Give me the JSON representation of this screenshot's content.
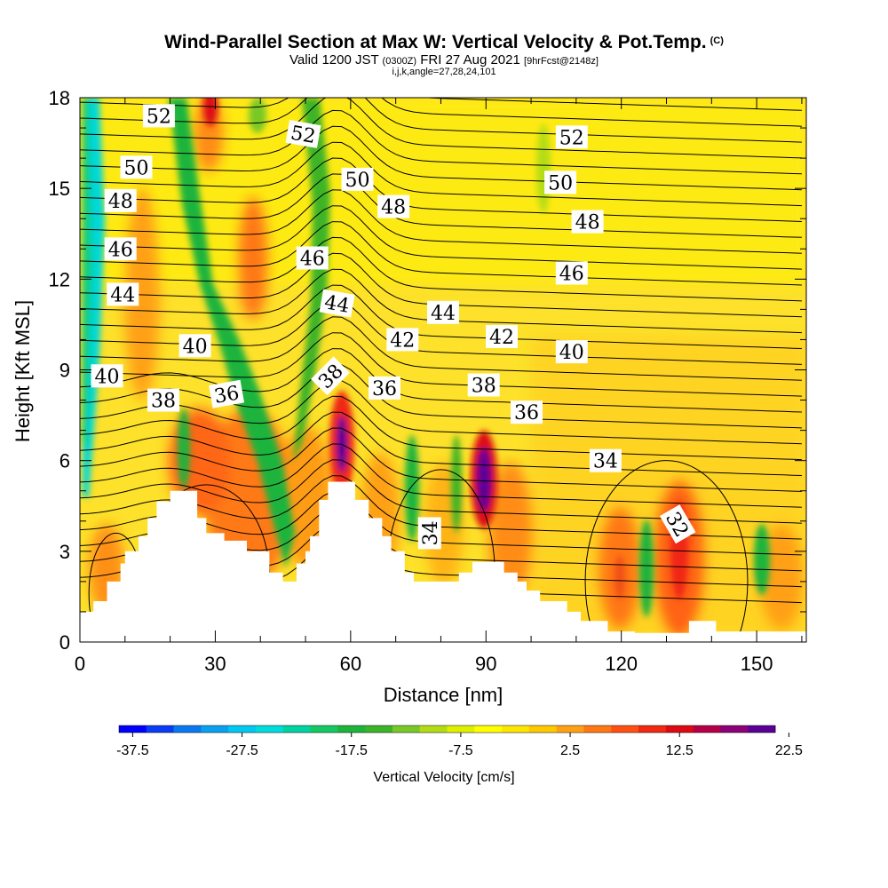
{
  "header": {
    "title": "Wind-Parallel Section at Max W: Vertical Velocity & Pot.Temp.",
    "copyright": "(C)",
    "valid_prefix": "Valid 1200 JST",
    "valid_zulu": "(0300Z)",
    "valid_date": "FRI 27 Aug 2021",
    "forecast_info": "[9hrFcst@2148z]",
    "grid_info": "i,j,k,angle=27,28,24,101"
  },
  "chart_data": {
    "type": "heatmap",
    "xlabel": "Distance [nm]",
    "ylabel": "Height [Kft MSL]",
    "xlim": [
      0,
      161
    ],
    "ylim": [
      0,
      18
    ],
    "x_ticks": [
      "0",
      "30",
      "60",
      "90",
      "120",
      "150"
    ],
    "y_ticks": [
      "0",
      "3",
      "6",
      "9",
      "12",
      "15",
      "18"
    ],
    "colorbar": {
      "label": "Vertical Velocity [cm/s]",
      "tick_labels": [
        "-37.5",
        "-27.5",
        "-17.5",
        "-7.5",
        "2.5",
        "12.5",
        "22.5"
      ],
      "colors": [
        "#0000ff",
        "#0a3cf5",
        "#0a78f0",
        "#0aa0f0",
        "#00c8f0",
        "#00dcdc",
        "#00d2a0",
        "#14c864",
        "#1eb43c",
        "#3cb428",
        "#78c828",
        "#b4dc14",
        "#dcf000",
        "#ffff00",
        "#ffe600",
        "#ffc800",
        "#ffa014",
        "#ff7814",
        "#ff5014",
        "#f02814",
        "#dc0a14",
        "#b40046",
        "#8c0078",
        "#5a0096"
      ]
    },
    "theta_contours": [
      {
        "value": 32,
        "label": "32"
      },
      {
        "value": 34,
        "label": "34"
      },
      {
        "value": 36,
        "label": "36"
      },
      {
        "value": 38,
        "label": "38"
      },
      {
        "value": 40,
        "label": "40"
      },
      {
        "value": 42,
        "label": "42"
      },
      {
        "value": 44,
        "label": "44"
      },
      {
        "value": 46,
        "label": "46"
      },
      {
        "value": 48,
        "label": "48"
      },
      {
        "value": 50,
        "label": "50"
      },
      {
        "value": 52,
        "label": "52"
      }
    ],
    "contour_labels": [
      {
        "text": "52",
        "x": 17.5,
        "y": 17.4,
        "rot": 0
      },
      {
        "text": "52",
        "x": 49.5,
        "y": 16.8,
        "rot": 10
      },
      {
        "text": "52",
        "x": 109,
        "y": 16.7,
        "rot": 0
      },
      {
        "text": "50",
        "x": 12.5,
        "y": 15.7,
        "rot": 0
      },
      {
        "text": "50",
        "x": 61.5,
        "y": 15.3,
        "rot": 0
      },
      {
        "text": "50",
        "x": 106.5,
        "y": 15.2,
        "rot": 0
      },
      {
        "text": "48",
        "x": 9,
        "y": 14.6,
        "rot": 0
      },
      {
        "text": "48",
        "x": 69.5,
        "y": 14.4,
        "rot": 0
      },
      {
        "text": "48",
        "x": 112.5,
        "y": 13.9,
        "rot": 0
      },
      {
        "text": "46",
        "x": 9,
        "y": 13.0,
        "rot": 0
      },
      {
        "text": "46",
        "x": 51.5,
        "y": 12.7,
        "rot": 0
      },
      {
        "text": "46",
        "x": 109,
        "y": 12.2,
        "rot": 0
      },
      {
        "text": "44",
        "x": 9.5,
        "y": 11.5,
        "rot": 0
      },
      {
        "text": "44",
        "x": 57,
        "y": 11.2,
        "rot": 10
      },
      {
        "text": "44",
        "x": 80.5,
        "y": 10.9,
        "rot": 0
      },
      {
        "text": "42",
        "x": 71.5,
        "y": 10.0,
        "rot": 0
      },
      {
        "text": "42",
        "x": 93.5,
        "y": 10.1,
        "rot": 0
      },
      {
        "text": "40",
        "x": 25.5,
        "y": 9.8,
        "rot": 0
      },
      {
        "text": "40",
        "x": 6,
        "y": 8.8,
        "rot": 0
      },
      {
        "text": "40",
        "x": 109,
        "y": 9.6,
        "rot": 0
      },
      {
        "text": "38",
        "x": 18.5,
        "y": 8.0,
        "rot": 0
      },
      {
        "text": "38",
        "x": 55.5,
        "y": 8.8,
        "rot": -45
      },
      {
        "text": "38",
        "x": 89.5,
        "y": 8.5,
        "rot": 0
      },
      {
        "text": "36",
        "x": 32.5,
        "y": 8.2,
        "rot": -10
      },
      {
        "text": "36",
        "x": 67.5,
        "y": 8.4,
        "rot": 0
      },
      {
        "text": "36",
        "x": 99,
        "y": 7.6,
        "rot": 0
      },
      {
        "text": "34",
        "x": 116.5,
        "y": 6.0,
        "rot": 0
      },
      {
        "text": "34",
        "x": 77.5,
        "y": 3.6,
        "rot": -90
      },
      {
        "text": "32",
        "x": 132.5,
        "y": 3.9,
        "rot": 60
      }
    ],
    "terrain_profile": [
      [
        0,
        1.0
      ],
      [
        3,
        1.0
      ],
      [
        3,
        1.35
      ],
      [
        6,
        1.35
      ],
      [
        6,
        2.0
      ],
      [
        9,
        2.0
      ],
      [
        9,
        2.6
      ],
      [
        10,
        2.6
      ],
      [
        10,
        3.0
      ],
      [
        13,
        3.0
      ],
      [
        13,
        3.5
      ],
      [
        15,
        3.5
      ],
      [
        15,
        4.1
      ],
      [
        17,
        4.1
      ],
      [
        17,
        4.65
      ],
      [
        20,
        4.65
      ],
      [
        20,
        5.0
      ],
      [
        26,
        5.0
      ],
      [
        26,
        4.1
      ],
      [
        28,
        4.1
      ],
      [
        28,
        3.6
      ],
      [
        32,
        3.6
      ],
      [
        32,
        3.35
      ],
      [
        37,
        3.35
      ],
      [
        37,
        3.0
      ],
      [
        42,
        3.0
      ],
      [
        42,
        2.3
      ],
      [
        45,
        2.3
      ],
      [
        45,
        2.0
      ],
      [
        48,
        2.0
      ],
      [
        48,
        2.6
      ],
      [
        50,
        2.6
      ],
      [
        50,
        3.0
      ],
      [
        51,
        3.0
      ],
      [
        51,
        3.5
      ],
      [
        53,
        3.5
      ],
      [
        53,
        4.7
      ],
      [
        55,
        4.7
      ],
      [
        55,
        5.3
      ],
      [
        61,
        5.3
      ],
      [
        61,
        4.7
      ],
      [
        64,
        4.7
      ],
      [
        64,
        4.1
      ],
      [
        67,
        4.1
      ],
      [
        67,
        3.5
      ],
      [
        69,
        3.5
      ],
      [
        69,
        3.0
      ],
      [
        72,
        3.0
      ],
      [
        72,
        2.3
      ],
      [
        74,
        2.3
      ],
      [
        74,
        2.0
      ],
      [
        84,
        2.0
      ],
      [
        84,
        2.3
      ],
      [
        87,
        2.3
      ],
      [
        87,
        2.65
      ],
      [
        94,
        2.65
      ],
      [
        94,
        2.3
      ],
      [
        97,
        2.3
      ],
      [
        97,
        2.0
      ],
      [
        99,
        2.0
      ],
      [
        99,
        1.7
      ],
      [
        102,
        1.7
      ],
      [
        102,
        1.35
      ],
      [
        108,
        1.35
      ],
      [
        108,
        1.0
      ],
      [
        111,
        1.0
      ],
      [
        111,
        0.7
      ],
      [
        117,
        0.7
      ],
      [
        117,
        0.35
      ],
      [
        123,
        0.35
      ],
      [
        123,
        0.3
      ],
      [
        135,
        0.3
      ],
      [
        135,
        0.7
      ],
      [
        141,
        0.7
      ],
      [
        141,
        0.35
      ],
      [
        161,
        0.35
      ]
    ]
  }
}
